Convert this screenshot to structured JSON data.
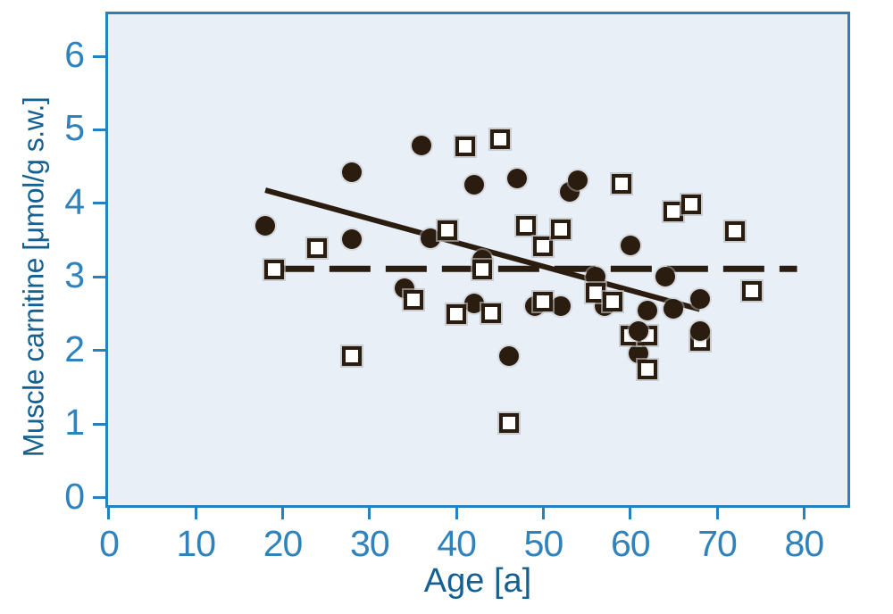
{
  "figure": {
    "background": "#ffffff",
    "plot_background": "#e9eff7",
    "border_color": "#2781c0",
    "tick_label_color": "#2f82bc",
    "axis_title_color": "#156090",
    "marker_color": "#2b1c10"
  },
  "chart_data": {
    "type": "scatter",
    "title": "",
    "xlabel": "Age [a]",
    "ylabel": "Muscle carnitine [μmol/g s.w.]",
    "xlim": [
      -0.1,
      85.0
    ],
    "ylim": [
      -0.1,
      6.57
    ],
    "x_ticks": [
      0,
      10,
      20,
      30,
      40,
      50,
      60,
      70,
      80
    ],
    "y_ticks": [
      0,
      1,
      2,
      3,
      4,
      5,
      6
    ],
    "grid": false,
    "legend": "none",
    "series": [
      {
        "name": "filled-circles",
        "marker": "circle",
        "points": [
          [
            18,
            3.7
          ],
          [
            28,
            4.42
          ],
          [
            28,
            3.51
          ],
          [
            34,
            2.85
          ],
          [
            36,
            4.79
          ],
          [
            37,
            3.52
          ],
          [
            42,
            4.25
          ],
          [
            42,
            2.64
          ],
          [
            43,
            3.24
          ],
          [
            46,
            1.93
          ],
          [
            47,
            4.34
          ],
          [
            49,
            2.6
          ],
          [
            52,
            2.6
          ],
          [
            53,
            4.16
          ],
          [
            54,
            4.32
          ],
          [
            56,
            3.0
          ],
          [
            57,
            2.6
          ],
          [
            60,
            3.43
          ],
          [
            61,
            2.27,
            3
          ],
          [
            61,
            1.96
          ],
          [
            62,
            2.54
          ],
          [
            64,
            3.0
          ],
          [
            65,
            2.57
          ],
          [
            68,
            2.7
          ],
          [
            68,
            2.27,
            3
          ]
        ]
      },
      {
        "name": "open-squares",
        "marker": "square",
        "points": [
          [
            19,
            3.1
          ],
          [
            24,
            3.39
          ],
          [
            28,
            1.93
          ],
          [
            35,
            2.69
          ],
          [
            39,
            3.64
          ],
          [
            40,
            2.5
          ],
          [
            41,
            4.77
          ],
          [
            43,
            3.1
          ],
          [
            44,
            2.51
          ],
          [
            45,
            4.87
          ],
          [
            46,
            1.02
          ],
          [
            48,
            3.69
          ],
          [
            50,
            3.42
          ],
          [
            50,
            2.66
          ],
          [
            52,
            3.65
          ],
          [
            56,
            2.79
          ],
          [
            58,
            2.66
          ],
          [
            59,
            4.27
          ],
          [
            60,
            2.21
          ],
          [
            62,
            2.21
          ],
          [
            62,
            1.74
          ],
          [
            65,
            3.89
          ],
          [
            67,
            3.99
          ],
          [
            68,
            2.13
          ],
          [
            72,
            3.62
          ],
          [
            74,
            2.81
          ]
        ]
      }
    ],
    "lines": [
      {
        "name": "regression-line",
        "style": "solid",
        "from": [
          18.0,
          4.18
        ],
        "to": [
          68.0,
          2.56
        ]
      },
      {
        "name": "reference-line",
        "style": "dashed",
        "from": [
          18.9,
          3.11
        ],
        "to": [
          79.2,
          3.11
        ]
      }
    ]
  }
}
